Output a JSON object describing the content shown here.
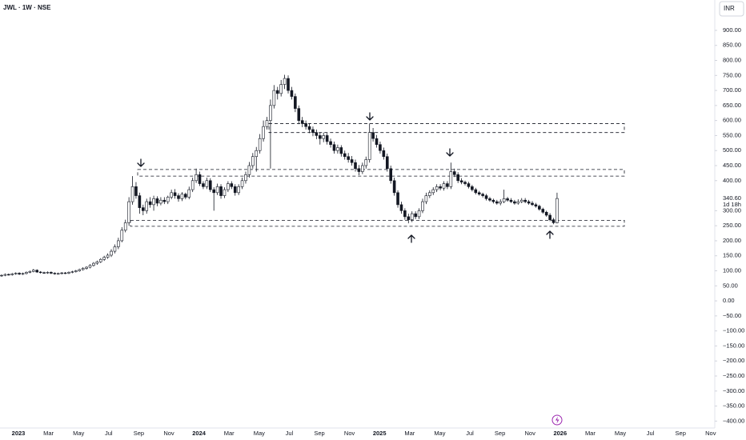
{
  "chart_data": {
    "type": "candlestick",
    "title": "JWL · 1W · NSE",
    "currency": "INR",
    "open": [
      83,
      85,
      88,
      87,
      90,
      92,
      89,
      91,
      95,
      98,
      102,
      96,
      94,
      93,
      95,
      92,
      90,
      91,
      93,
      92,
      95,
      97,
      100,
      104,
      108,
      112,
      118,
      125,
      130,
      138,
      145,
      152,
      165,
      180,
      200,
      235,
      260,
      330,
      380,
      350,
      310,
      300,
      330,
      320,
      340,
      325,
      335,
      330,
      345,
      360,
      350,
      340,
      355,
      345,
      370,
      400,
      420,
      390,
      380,
      400,
      370,
      360,
      380,
      350,
      370,
      390,
      380,
      360,
      380,
      400,
      420,
      450,
      480,
      500,
      540,
      580,
      600,
      650,
      700,
      690,
      720,
      740,
      700,
      680,
      640,
      600,
      590,
      580,
      570,
      560,
      550,
      540,
      550,
      530,
      520,
      500,
      510,
      490,
      480,
      470,
      460,
      440,
      430,
      450,
      470,
      560,
      540,
      520,
      500,
      480,
      440,
      400,
      360,
      320,
      300,
      280,
      270,
      290,
      280,
      300,
      330,
      350,
      360,
      370,
      380,
      375,
      390,
      380,
      430,
      420,
      400,
      395,
      390,
      380,
      370,
      360,
      355,
      350,
      340,
      335,
      330,
      325,
      330,
      340,
      335,
      330,
      325,
      330,
      335,
      330,
      325,
      320,
      315,
      305,
      295,
      285,
      270,
      260
    ],
    "high": [
      88,
      91,
      91,
      93,
      95,
      95,
      94,
      98,
      101,
      106,
      105,
      99,
      97,
      98,
      98,
      95,
      94,
      96,
      96,
      98,
      100,
      103,
      107,
      112,
      115,
      122,
      129,
      134,
      142,
      150,
      158,
      172,
      188,
      210,
      245,
      270,
      345,
      415,
      395,
      360,
      320,
      340,
      345,
      350,
      348,
      345,
      345,
      350,
      370,
      372,
      358,
      362,
      360,
      380,
      410,
      440,
      430,
      398,
      410,
      408,
      378,
      390,
      388,
      378,
      398,
      398,
      388,
      388,
      410,
      430,
      462,
      492,
      512,
      555,
      600,
      612,
      670,
      718,
      712,
      735,
      752,
      750,
      712,
      690,
      650,
      612,
      600,
      590,
      580,
      570,
      560,
      560,
      558,
      540,
      530,
      520,
      518,
      500,
      492,
      482,
      470,
      452,
      460,
      480,
      590,
      575,
      552,
      530,
      510,
      490,
      450,
      410,
      368,
      330,
      308,
      290,
      298,
      298,
      308,
      340,
      360,
      368,
      378,
      388,
      388,
      398,
      398,
      460,
      440,
      428,
      408,
      400,
      396,
      386,
      376,
      366,
      360,
      356,
      346,
      340,
      336,
      338,
      370,
      346,
      342,
      336,
      338,
      342,
      342,
      336,
      332,
      326,
      320,
      310,
      300,
      292,
      276,
      360
    ],
    "low": [
      80,
      82,
      84,
      84,
      87,
      86,
      86,
      88,
      92,
      95,
      93,
      91,
      90,
      90,
      89,
      87,
      87,
      88,
      89,
      89,
      92,
      94,
      97,
      101,
      104,
      108,
      114,
      120,
      126,
      133,
      140,
      146,
      158,
      172,
      195,
      228,
      250,
      320,
      340,
      290,
      285,
      290,
      310,
      300,
      315,
      318,
      322,
      322,
      338,
      340,
      330,
      332,
      338,
      338,
      362,
      392,
      382,
      372,
      372,
      362,
      300,
      352,
      340,
      342,
      362,
      372,
      350,
      352,
      372,
      390,
      410,
      440,
      430,
      490,
      530,
      570,
      440,
      640,
      670,
      680,
      705,
      690,
      670,
      628,
      588,
      578,
      570,
      558,
      548,
      538,
      520,
      528,
      520,
      510,
      490,
      490,
      480,
      470,
      460,
      450,
      430,
      418,
      422,
      440,
      460,
      530,
      510,
      490,
      470,
      430,
      390,
      350,
      310,
      290,
      270,
      258,
      262,
      272,
      272,
      292,
      322,
      342,
      352,
      362,
      368,
      367,
      372,
      372,
      412,
      392,
      388,
      384,
      374,
      364,
      354,
      350,
      344,
      334,
      330,
      324,
      320,
      318,
      325,
      330,
      326,
      320,
      320,
      325,
      325,
      320,
      316,
      310,
      300,
      290,
      280,
      265,
      255,
      258
    ],
    "close": [
      85,
      88,
      87,
      90,
      92,
      89,
      91,
      95,
      98,
      102,
      96,
      94,
      93,
      95,
      92,
      90,
      91,
      93,
      92,
      95,
      97,
      100,
      104,
      108,
      112,
      118,
      125,
      130,
      138,
      145,
      152,
      165,
      180,
      200,
      235,
      260,
      330,
      380,
      350,
      310,
      300,
      330,
      320,
      340,
      325,
      335,
      330,
      345,
      360,
      350,
      340,
      355,
      345,
      370,
      400,
      420,
      390,
      380,
      400,
      370,
      360,
      380,
      350,
      370,
      390,
      380,
      360,
      380,
      400,
      420,
      450,
      480,
      500,
      540,
      580,
      600,
      650,
      700,
      690,
      720,
      740,
      700,
      680,
      640,
      600,
      590,
      580,
      570,
      560,
      550,
      540,
      550,
      530,
      520,
      500,
      510,
      490,
      480,
      470,
      460,
      440,
      430,
      450,
      470,
      560,
      540,
      520,
      500,
      480,
      440,
      400,
      360,
      320,
      300,
      280,
      270,
      290,
      280,
      300,
      330,
      350,
      360,
      370,
      380,
      375,
      390,
      380,
      430,
      420,
      400,
      395,
      390,
      380,
      370,
      360,
      355,
      350,
      340,
      335,
      330,
      325,
      330,
      340,
      335,
      330,
      325,
      330,
      335,
      330,
      325,
      320,
      315,
      305,
      295,
      285,
      270,
      260,
      340.6
    ],
    "ylim": [
      -423,
      1001
    ],
    "yticks": [
      {
        "value": 900,
        "label": "900.00"
      },
      {
        "value": 850,
        "label": "850.00"
      },
      {
        "value": 800,
        "label": "800.00"
      },
      {
        "value": 750,
        "label": "750.00"
      },
      {
        "value": 700,
        "label": "700.00"
      },
      {
        "value": 650,
        "label": "650.00"
      },
      {
        "value": 600,
        "label": "600.00"
      },
      {
        "value": 550,
        "label": "550.00"
      },
      {
        "value": 500,
        "label": "500.00"
      },
      {
        "value": 450,
        "label": "450.00"
      },
      {
        "value": 400,
        "label": "400.00"
      },
      {
        "value": 300,
        "label": "300.00"
      },
      {
        "value": 250,
        "label": "250.00"
      },
      {
        "value": 200,
        "label": "200.00"
      },
      {
        "value": 150,
        "label": "150.00"
      },
      {
        "value": 100,
        "label": "100.00"
      },
      {
        "value": 50,
        "label": "50.00"
      },
      {
        "value": 0,
        "label": "0.00"
      },
      {
        "value": -50,
        "label": "−50.00"
      },
      {
        "value": -100,
        "label": "−100.00"
      },
      {
        "value": -150,
        "label": "−150.00"
      },
      {
        "value": -200,
        "label": "−200.00"
      },
      {
        "value": -250,
        "label": "−250.00"
      },
      {
        "value": -300,
        "label": "−300.00"
      },
      {
        "value": -350,
        "label": "−350.00"
      },
      {
        "value": -400,
        "label": "−400.00"
      }
    ],
    "xticks": [
      "2023",
      "Mar",
      "May",
      "Jul",
      "Sep",
      "Nov",
      "2024",
      "Mar",
      "May",
      "Jul",
      "Sep",
      "Nov",
      "2025",
      "Mar",
      "May",
      "Jul",
      "Sep",
      "Nov",
      "2026",
      "Mar",
      "May",
      "Jul",
      "Sep",
      "Nov"
    ],
    "zones": [
      {
        "top": 590,
        "bottom": 560
      },
      {
        "top": 437,
        "bottom": 415
      },
      {
        "top": 268,
        "bottom": 248
      }
    ],
    "last_price_label": "340.60",
    "countdown": "1d 18h"
  }
}
